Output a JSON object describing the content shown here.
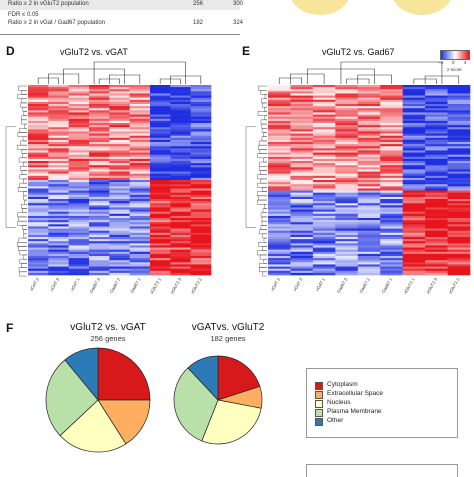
{
  "table": {
    "rows": [
      {
        "label": "Ratio ≥ 2 in vGluT2 population",
        "a": "256",
        "b": "300"
      },
      {
        "label": "FDR ≤ 0.05",
        "a": "",
        "b": ""
      },
      {
        "label": "Ratio ≥ 2 in vGat / Gad67 population",
        "a": "182",
        "b": "324"
      }
    ]
  },
  "panels": {
    "D": {
      "letter": "D",
      "title": "vGluT2 vs. vGAT",
      "columns": [
        "vGAT 2",
        "vGAT 3",
        "vGAT 1",
        "Gad67 3",
        "Gad67 2",
        "Gad67 1",
        "vGluT2 1",
        "vGluT2 3",
        "vGluT2 2"
      ]
    },
    "E": {
      "letter": "E",
      "title": "vGluT2 vs. Gad67",
      "columns": [
        "vGAT 2",
        "vGAT 3",
        "vGAT 1",
        "Gad67 3",
        "Gad67 2",
        "Gad67 1",
        "vGluT2 1",
        "vGluT2 3",
        "vGluT2 2"
      ]
    },
    "F": {
      "letter": "F"
    }
  },
  "colorscale": {
    "ticks": [
      "−4",
      "0",
      "4"
    ],
    "label": "z-score",
    "colors": {
      "low": "#1f2fe0",
      "mid": "#ffffff",
      "high": "#e8141c"
    }
  },
  "chart_data": [
    {
      "type": "pie",
      "title": "vGluT2 vs. vGAT",
      "subtitle": "256 genes",
      "categories": [
        "Cytoplasm",
        "Extracellular Space",
        "Nucleus",
        "Plasma Membrane",
        "Other"
      ],
      "values": [
        25,
        16,
        22,
        26,
        11
      ]
    },
    {
      "type": "pie",
      "title": "vGATvs. vGluT2",
      "subtitle": "182 genes",
      "categories": [
        "Cytoplasm",
        "Extracellular Space",
        "Nucleus",
        "Plasma Membrane",
        "Other"
      ],
      "values": [
        20,
        8,
        28,
        32,
        12
      ]
    }
  ],
  "legend": {
    "items": [
      {
        "label": "Cytoplasm",
        "color": "#d7191c"
      },
      {
        "label": "Extracellular Space",
        "color": "#fdae61"
      },
      {
        "label": "Nucleus",
        "color": "#ffffbf"
      },
      {
        "label": "Plasma Membrane",
        "color": "#b8e0a8"
      },
      {
        "label": "Other",
        "color": "#2c7bb6"
      }
    ]
  }
}
